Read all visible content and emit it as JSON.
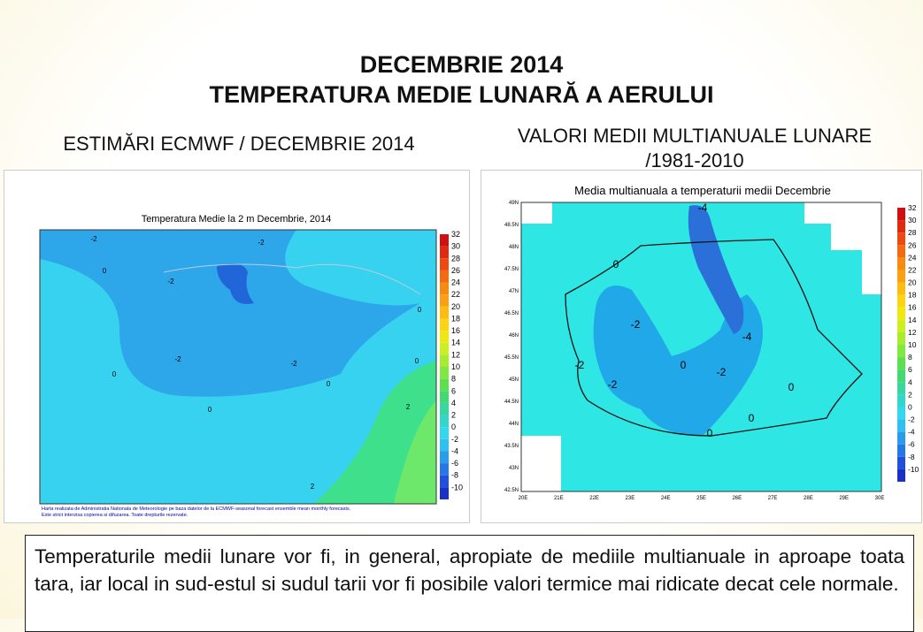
{
  "header": {
    "title": "DECEMBRIE 2014",
    "subtitle": "TEMPERATURA MEDIE LUNARĂ A AERULUI"
  },
  "left_panel": {
    "heading": "ESTIMĂRI ECMWF / DECEMBRIE 2014",
    "map_title": "Temperatura Medie la 2 m Decembrie, 2014",
    "colorbar": [
      32,
      30,
      28,
      26,
      24,
      22,
      20,
      18,
      16,
      14,
      12,
      10,
      8,
      6,
      4,
      2,
      0,
      -2,
      -4,
      -6,
      -8,
      -10
    ],
    "contour_labels": [
      "-2",
      "-2",
      "0",
      "-2",
      "0",
      "-2",
      "-2",
      "0",
      "0",
      "0",
      "2",
      "0",
      "2"
    ],
    "credits": [
      "Harta realizata de Administratia Nationala de Meteorologie pe baza datelor de la ECMWF-seasonal forecast ensemble mean monthly forecasts.",
      "Este strict interzisa copierea si difuzarea. Toate drepturile rezervate."
    ]
  },
  "right_panel": {
    "heading": "VALORI MEDII MULTIANUALE LUNARE /1981-2010",
    "map_title": "Media multianuala a temperaturii medii Decembrie",
    "lat_labels": [
      "49N",
      "48.5N",
      "48N",
      "47.5N",
      "47N",
      "46.5N",
      "46N",
      "45.5N",
      "45N",
      "44.5N",
      "44N",
      "43.5N",
      "43N",
      "42.5N"
    ],
    "lon_labels": [
      "20E",
      "21E",
      "22E",
      "23E",
      "24E",
      "25E",
      "26E",
      "27E",
      "28E",
      "29E",
      "30E"
    ],
    "colorbar": [
      32,
      30,
      28,
      26,
      24,
      22,
      20,
      18,
      16,
      14,
      12,
      10,
      8,
      6,
      4,
      2,
      0,
      -2,
      -4,
      -6,
      -8,
      -10
    ],
    "contour_labels": [
      "-4",
      "0",
      "-2",
      "-4",
      "-2",
      "0",
      "-2",
      "-2",
      "0",
      "0",
      "0"
    ]
  },
  "body": {
    "text": "Temperaturile medii lunare vor fi, in general, apropiate de mediile multianuale in aproape toata tara, iar local in sud-estul si sudul tarii vor fi posibile valori termice mai ridicate decat cele normale."
  }
}
